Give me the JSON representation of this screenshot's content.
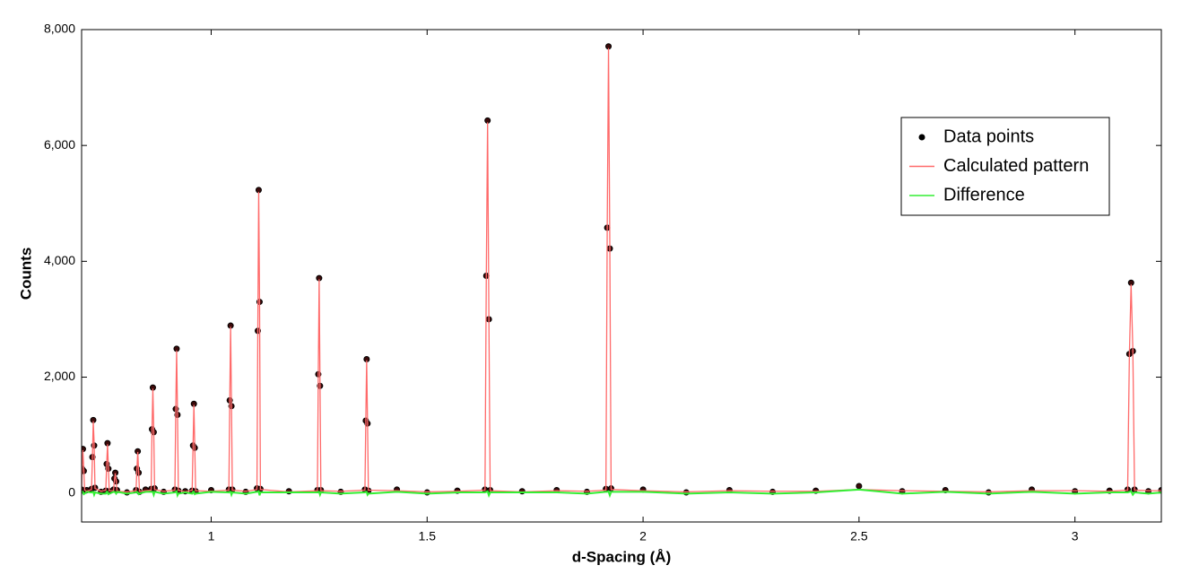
{
  "chart_data": {
    "type": "line",
    "xlabel": "d-Spacing (Å)",
    "ylabel": "Counts",
    "xlim": [
      0.7,
      3.2
    ],
    "ylim": [
      -500,
      8000
    ],
    "xticks": [
      1,
      1.5,
      2,
      2.5,
      3
    ],
    "yticks": [
      0,
      {
        "value": 2000,
        "label": "2,000"
      },
      {
        "value": 4000,
        "label": "4,000"
      },
      {
        "value": 6000,
        "label": "6,000"
      },
      {
        "value": 8000,
        "label": "8,000"
      }
    ],
    "legend": "upper right",
    "x": [
      0.7,
      0.701,
      0.703,
      0.705,
      0.707,
      0.712,
      0.723,
      0.725,
      0.727,
      0.729,
      0.731,
      0.745,
      0.756,
      0.758,
      0.76,
      0.762,
      0.764,
      0.774,
      0.776,
      0.778,
      0.78,
      0.782,
      0.805,
      0.826,
      0.828,
      0.83,
      0.832,
      0.834,
      0.848,
      0.861,
      0.863,
      0.865,
      0.867,
      0.869,
      0.89,
      0.916,
      0.918,
      0.92,
      0.922,
      0.924,
      0.94,
      0.956,
      0.958,
      0.96,
      0.962,
      0.964,
      1.0,
      1.041,
      1.043,
      1.045,
      1.047,
      1.049,
      1.08,
      1.106,
      1.108,
      1.11,
      1.112,
      1.114,
      1.18,
      1.246,
      1.248,
      1.25,
      1.252,
      1.254,
      1.3,
      1.356,
      1.358,
      1.36,
      1.362,
      1.364,
      1.43,
      1.5,
      1.57,
      1.634,
      1.637,
      1.64,
      1.643,
      1.646,
      1.72,
      1.8,
      1.87,
      1.914,
      1.917,
      1.92,
      1.923,
      1.926,
      2.0,
      2.1,
      2.2,
      2.3,
      2.4,
      2.5,
      2.6,
      2.7,
      2.8,
      2.9,
      3.0,
      3.08,
      3.122,
      3.126,
      3.13,
      3.134,
      3.138,
      3.17,
      3.2
    ],
    "series": [
      {
        "name": "Data points",
        "mode": "markers",
        "color": "#000000",
        "values": [
          60,
          420,
          760,
          380,
          40,
          50,
          70,
          620,
          1260,
          820,
          90,
          20,
          40,
          500,
          860,
          420,
          30,
          60,
          250,
          350,
          200,
          50,
          10,
          50,
          420,
          720,
          350,
          20,
          60,
          70,
          1100,
          1820,
          1050,
          80,
          20,
          60,
          1450,
          2490,
          1350,
          40,
          30,
          40,
          820,
          1540,
          780,
          30,
          50,
          60,
          1600,
          2890,
          1500,
          60,
          20,
          80,
          2800,
          5230,
          3300,
          70,
          30,
          50,
          2050,
          3710,
          1850,
          50,
          20,
          60,
          1250,
          2310,
          1200,
          40,
          60,
          10,
          40,
          60,
          3750,
          6430,
          3000,
          50,
          30,
          50,
          20,
          70,
          4580,
          7710,
          4220,
          80,
          60,
          10,
          50,
          20,
          40,
          120,
          30,
          50,
          10,
          60,
          30,
          40,
          60,
          2400,
          3630,
          2450,
          60,
          30,
          50
        ]
      },
      {
        "name": "Calculated pattern",
        "mode": "lines",
        "color": "#ff6a6a",
        "values": [
          40,
          400,
          740,
          400,
          50,
          30,
          60,
          600,
          1240,
          850,
          80,
          30,
          50,
          480,
          840,
          440,
          40,
          40,
          230,
          340,
          210,
          30,
          20,
          40,
          400,
          710,
          370,
          30,
          40,
          50,
          1080,
          1800,
          1080,
          60,
          30,
          50,
          1430,
          2460,
          1390,
          50,
          20,
          50,
          800,
          1520,
          800,
          40,
          30,
          50,
          1580,
          2870,
          1530,
          50,
          30,
          60,
          2780,
          5200,
          3340,
          60,
          20,
          40,
          2030,
          3690,
          1880,
          40,
          30,
          50,
          1230,
          2290,
          1230,
          50,
          40,
          20,
          30,
          50,
          3730,
          6400,
          3040,
          40,
          20,
          40,
          30,
          50,
          4560,
          7680,
          4260,
          60,
          40,
          20,
          40,
          30,
          30,
          60,
          40,
          30,
          20,
          40,
          40,
          30,
          50,
          2380,
          3600,
          2480,
          50,
          40,
          40
        ]
      },
      {
        "name": "Difference",
        "mode": "lines",
        "color": "#33ee33",
        "values": [
          20,
          20,
          20,
          -20,
          -10,
          20,
          10,
          20,
          20,
          -30,
          10,
          -10,
          -10,
          20,
          20,
          -20,
          -10,
          20,
          20,
          10,
          -10,
          20,
          -10,
          10,
          20,
          10,
          -20,
          -10,
          20,
          20,
          20,
          20,
          -30,
          20,
          -10,
          10,
          20,
          30,
          -40,
          -10,
          10,
          -10,
          20,
          20,
          -20,
          -10,
          20,
          10,
          20,
          20,
          -30,
          10,
          -10,
          20,
          20,
          30,
          -40,
          10,
          10,
          10,
          20,
          20,
          -30,
          10,
          -10,
          10,
          20,
          20,
          -30,
          -10,
          20,
          -10,
          10,
          10,
          20,
          30,
          -40,
          10,
          10,
          10,
          -10,
          20,
          20,
          30,
          -40,
          20,
          20,
          -10,
          10,
          -10,
          10,
          60,
          -10,
          20,
          -10,
          20,
          -10,
          10,
          10,
          20,
          30,
          -30,
          10,
          -10,
          10
        ]
      }
    ]
  }
}
